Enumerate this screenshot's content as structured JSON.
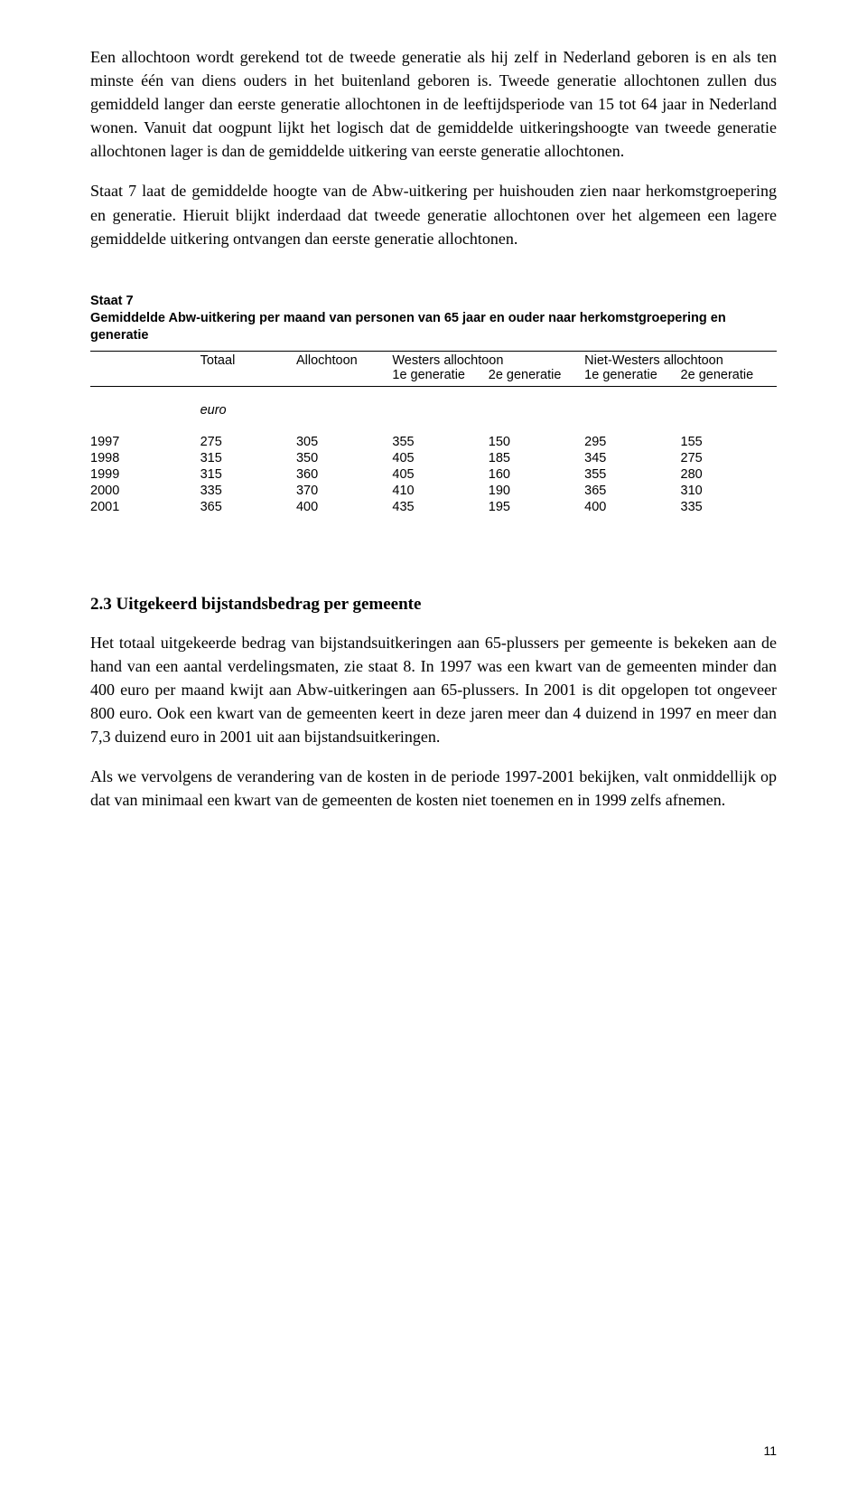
{
  "paragraphs": {
    "p1": "Een allochtoon wordt gerekend tot de tweede generatie als hij zelf in Nederland geboren is en als ten minste één van diens ouders in het buitenland geboren is. Tweede generatie allochtonen zullen dus gemiddeld langer dan eerste generatie allochtonen in de leeftijdsperiode van 15 tot 64 jaar in Nederland wonen. Vanuit dat oogpunt lijkt het logisch dat de gemiddelde uitkeringshoogte van tweede generatie allochtonen lager is dan de gemiddelde uitkering van eerste generatie allochtonen.",
    "p2": "Staat 7 laat de gemiddelde hoogte van de Abw-uitkering per huishouden zien naar herkomstgroepering en generatie. Hieruit blijkt inderdaad dat tweede generatie allochtonen over het algemeen een lagere gemiddelde uitkering ontvangen dan eerste generatie allochtonen.",
    "p3": "Het totaal uitgekeerde bedrag van bijstandsuitkeringen aan 65-plussers per gemeente is bekeken aan de hand van een aantal verdelingsmaten, zie staat 8. In 1997 was een kwart van de gemeenten minder dan 400 euro per maand kwijt aan Abw-uitkeringen aan 65-plussers. In 2001 is dit opgelopen tot ongeveer 800 euro. Ook een kwart van de gemeenten keert in deze jaren meer dan 4 duizend in 1997 en meer dan 7,3 duizend euro in 2001 uit aan bijstandsuitkeringen.",
    "p4": "Als we vervolgens de verandering van de kosten in de periode 1997-2001 bekijken, valt onmiddellijk op dat van minimaal een kwart van de gemeenten de kosten niet toenemen en in 1999 zelfs afnemen."
  },
  "section_heading": "2.3  Uitgekeerd bijstandsbedrag per gemeente",
  "table": {
    "title": "Staat 7",
    "subtitle": "Gemiddelde Abw-uitkering per maand van personen van 65 jaar en ouder naar herkomstgroepering en generatie",
    "head": {
      "totaal": "Totaal",
      "allochtoon": "Allochtoon",
      "westers": "Westers allochtoon",
      "nietwesters": "Niet-Westers allochtoon",
      "gen1": "1e generatie",
      "gen2": "2e generatie"
    },
    "unit": "euro",
    "rows": [
      {
        "year": "1997",
        "totaal": "275",
        "alloch": "305",
        "w1": "355",
        "w2": "150",
        "n1": "295",
        "n2": "155"
      },
      {
        "year": "1998",
        "totaal": "315",
        "alloch": "350",
        "w1": "405",
        "w2": "185",
        "n1": "345",
        "n2": "275"
      },
      {
        "year": "1999",
        "totaal": "315",
        "alloch": "360",
        "w1": "405",
        "w2": "160",
        "n1": "355",
        "n2": "280"
      },
      {
        "year": "2000",
        "totaal": "335",
        "alloch": "370",
        "w1": "410",
        "w2": "190",
        "n1": "365",
        "n2": "310"
      },
      {
        "year": "2001",
        "totaal": "365",
        "alloch": "400",
        "w1": "435",
        "w2": "195",
        "n1": "400",
        "n2": "335"
      }
    ]
  },
  "page_number": "11"
}
